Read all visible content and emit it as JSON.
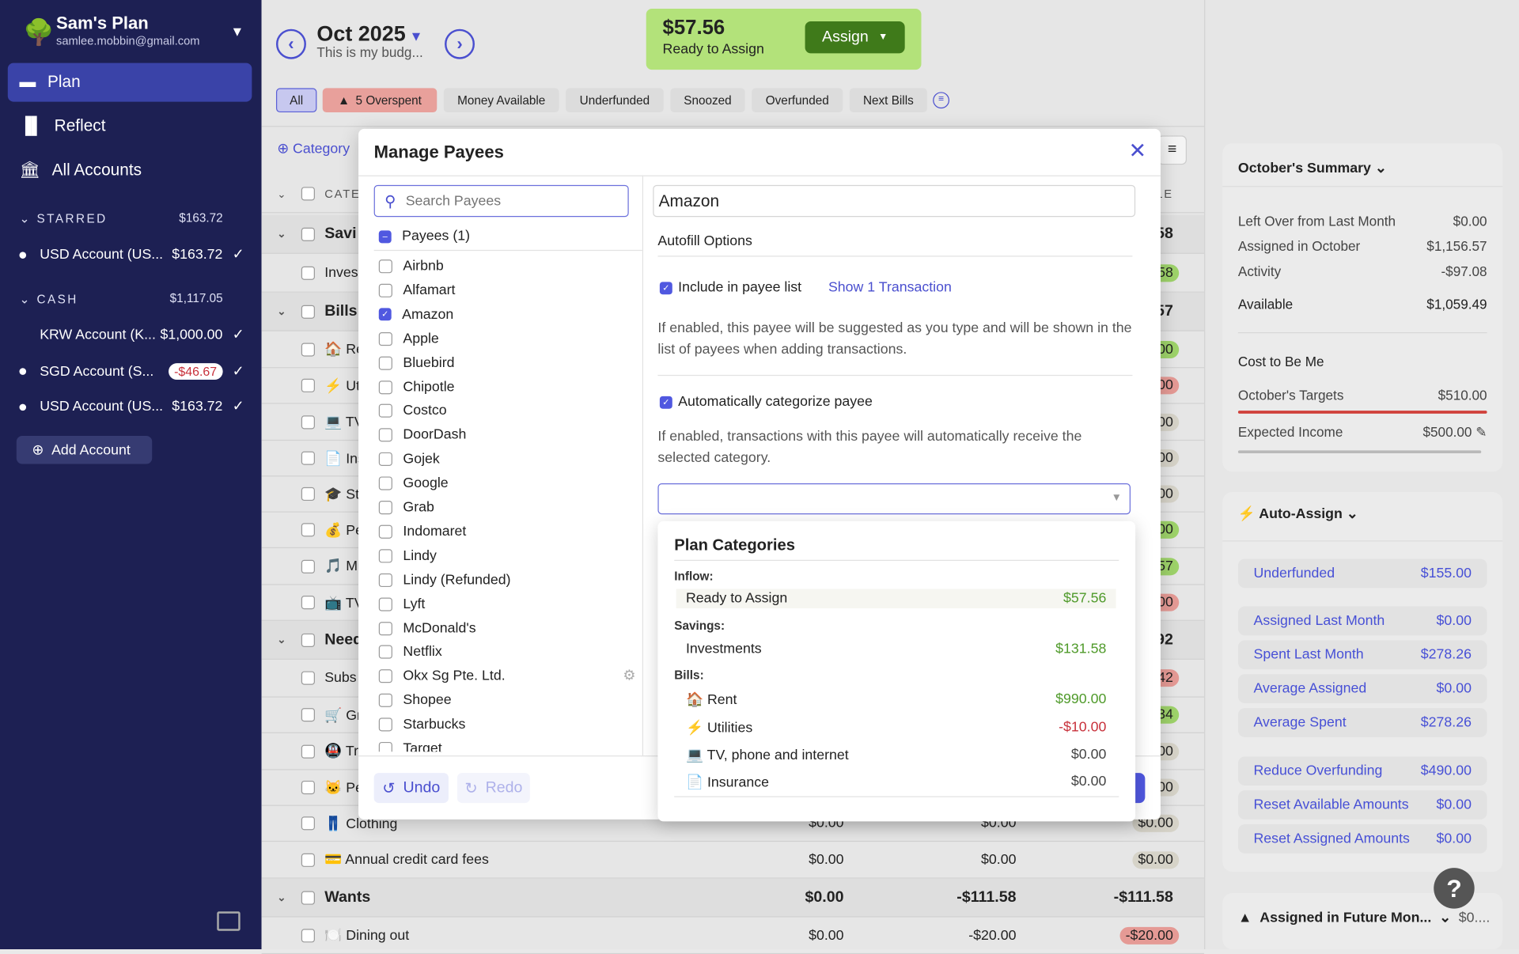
{
  "sidebar": {
    "plan_name": "Sam's Plan",
    "email": "samlee.mobbin@gmail.com",
    "nav": [
      {
        "label": "Plan",
        "icon": "plan-icon"
      },
      {
        "label": "Reflect",
        "icon": "bar-chart-icon"
      },
      {
        "label": "All Accounts",
        "icon": "bank-icon"
      }
    ],
    "starred": {
      "label": "STARRED",
      "total": "$163.72",
      "accounts": [
        {
          "name": "USD Account (US...",
          "balance": "$163.72"
        }
      ]
    },
    "cash": {
      "label": "CASH",
      "total": "$1,117.05",
      "accounts": [
        {
          "name": "KRW Account (K...",
          "balance": "$1,000.00"
        },
        {
          "name": "SGD Account (S...",
          "balance": "-$46.67"
        },
        {
          "name": "USD Account (US...",
          "balance": "$163.72"
        }
      ]
    },
    "add_account": "Add Account"
  },
  "header": {
    "month": "Oct 2025",
    "note": "This is my budg...",
    "ready_amount": "$57.56",
    "ready_label": "Ready to Assign",
    "assign_label": "Assign"
  },
  "filters": [
    "All",
    "5 Overspent",
    "Money Available",
    "Underfunded",
    "Snoozed",
    "Overfunded",
    "Next Bills"
  ],
  "table": {
    "add_category": "Category",
    "header_category": "CATE",
    "header_available": "BLE",
    "rows": [
      {
        "type": "group",
        "name": "Savi",
        "c3": ".58"
      },
      {
        "type": "item",
        "name": "Inves",
        "c3": ".58",
        "pill": "g"
      },
      {
        "type": "group",
        "name": "Bills",
        "c3": ".57"
      },
      {
        "type": "item",
        "name": "🏠 Re",
        "c3": ".00",
        "pill": "g"
      },
      {
        "type": "item",
        "name": "⚡ Ut",
        "c3": ".00",
        "pill": "r"
      },
      {
        "type": "item",
        "name": "💻 TV",
        "c3": ".00",
        "pill": "n"
      },
      {
        "type": "item",
        "name": "📄 Ins",
        "c3": ".00",
        "pill": "n"
      },
      {
        "type": "item",
        "name": "🎓 St",
        "c3": ".00",
        "pill": "n"
      },
      {
        "type": "item",
        "name": "💰 Pe",
        "c3": ".00",
        "pill": "g"
      },
      {
        "type": "item",
        "name": "🎵 Mu",
        "c3": ".57",
        "pill": "g"
      },
      {
        "type": "item",
        "name": "📺 TV",
        "c3": ".00",
        "pill": "r"
      },
      {
        "type": "group",
        "name": "Need",
        "c3": ".92"
      },
      {
        "type": "item",
        "name": "Subs",
        "c3": ".42",
        "pill": "r"
      },
      {
        "type": "item",
        "name": "🛒 Gr",
        "c3": ".34",
        "pill": "g"
      },
      {
        "type": "item",
        "name": "🚇 Tra",
        "c3": ".00",
        "pill": "n"
      },
      {
        "type": "item",
        "name": "🐱 Pe",
        "c3": ".00",
        "pill": "n"
      },
      {
        "type": "item",
        "name": "👖 Clothing",
        "c1": "$0.00",
        "c2": "$0.00",
        "c3": "$0.00",
        "pill": "n"
      },
      {
        "type": "item",
        "name": "💳 Annual credit card fees",
        "c1": "$0.00",
        "c2": "$0.00",
        "c3": "$0.00",
        "pill": "n"
      },
      {
        "type": "group",
        "name": "Wants",
        "c1": "$0.00",
        "c2": "-$111.58",
        "c3": "-$111.58"
      },
      {
        "type": "item",
        "name": "🍽️ Dining out",
        "c1": "$0.00",
        "c2": "-$20.00",
        "c3": "-$20.00",
        "pill": "r"
      }
    ]
  },
  "summary": {
    "title": "October's Summary",
    "lines": [
      {
        "label": "Left Over from Last Month",
        "value": "$0.00"
      },
      {
        "label": "Assigned in October",
        "value": "$1,156.57"
      },
      {
        "label": "Activity",
        "value": "-$97.08"
      }
    ],
    "available": {
      "label": "Available",
      "value": "$1,059.49"
    },
    "cost_title": "Cost to Be Me",
    "targets": {
      "label": "October's Targets",
      "value": "$510.00"
    },
    "income": {
      "label": "Expected Income",
      "value": "$500.00"
    }
  },
  "auto_assign": {
    "title": "Auto-Assign",
    "items": [
      {
        "label": "Underfunded",
        "value": "$155.00"
      },
      {
        "label": "Assigned Last Month",
        "value": "$0.00"
      },
      {
        "label": "Spent Last Month",
        "value": "$278.26"
      },
      {
        "label": "Average Assigned",
        "value": "$0.00"
      },
      {
        "label": "Average Spent",
        "value": "$278.26"
      },
      {
        "label": "Reduce Overfunding",
        "value": "$490.00"
      },
      {
        "label": "Reset Available Amounts",
        "value": "$0.00"
      },
      {
        "label": "Reset Assigned Amounts",
        "value": "$0.00"
      }
    ]
  },
  "future": {
    "title": "Assigned in Future Mon...",
    "value": "$0...."
  },
  "help": "?",
  "modal": {
    "title": "Manage Payees",
    "search_placeholder": "Search Payees",
    "payees_header": "Payees (1)",
    "payees": [
      {
        "name": "Airbnb"
      },
      {
        "name": "Alfamart"
      },
      {
        "name": "Amazon",
        "checked": true
      },
      {
        "name": "Apple"
      },
      {
        "name": "Bluebird"
      },
      {
        "name": "Chipotle"
      },
      {
        "name": "Costco"
      },
      {
        "name": "DoorDash"
      },
      {
        "name": "Gojek"
      },
      {
        "name": "Google"
      },
      {
        "name": "Grab"
      },
      {
        "name": "Indomaret"
      },
      {
        "name": "Lindy"
      },
      {
        "name": "Lindy (Refunded)"
      },
      {
        "name": "Lyft"
      },
      {
        "name": "McDonald's"
      },
      {
        "name": "Netflix"
      },
      {
        "name": "Okx Sg Pte. Ltd.",
        "gear": true
      },
      {
        "name": "Shopee"
      },
      {
        "name": "Starbucks"
      },
      {
        "name": "Target"
      }
    ],
    "undo": "Undo",
    "redo": "Redo",
    "payee_name": "Amazon",
    "autofill_title": "Autofill Options",
    "include_label": "Include in payee list",
    "show_transactions": "Show 1 Transaction",
    "include_desc": "If enabled, this payee will be suggested as you type and will be shown in the list of payees when adding transactions.",
    "autocat_label": "Automatically categorize payee",
    "autocat_desc": "If enabled, transactions with this payee will automatically receive the selected category.",
    "category_value": ""
  },
  "dropdown": {
    "title": "Plan Categories",
    "groups": [
      {
        "label": "Inflow:",
        "items": [
          {
            "name": "Ready to Assign",
            "value": "$57.56",
            "color": "#4f9a2a"
          }
        ]
      },
      {
        "label": "Savings:",
        "items": [
          {
            "name": "Investments",
            "value": "$131.58",
            "color": "#4f9a2a"
          }
        ]
      },
      {
        "label": "Bills:",
        "items": [
          {
            "name": "🏠 Rent",
            "value": "$990.00",
            "color": "#4f9a2a"
          },
          {
            "name": "⚡ Utilities",
            "value": "-$10.00",
            "color": "#c8313b"
          },
          {
            "name": "💻 TV, phone and internet",
            "value": "$0.00",
            "color": "#444444"
          },
          {
            "name": "📄 Insurance",
            "value": "$0.00",
            "color": "#444444"
          }
        ]
      }
    ]
  },
  "colors": {
    "sidebar": "#1d2053",
    "accent": "#4a4fcf",
    "ready_bg": "#b3e27a",
    "assign_btn": "#3f7a1a",
    "overspent": "#e8a09b"
  }
}
